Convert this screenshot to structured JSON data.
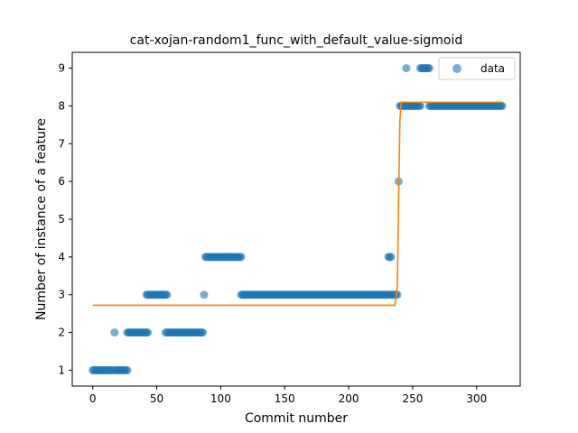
{
  "chart_data": {
    "type": "scatter",
    "title": "cat-xojan-random1_func_with_default_value-sigmoid",
    "xlabel": "Commit number",
    "ylabel": "Number of instance of a feature",
    "xlim": [
      -16,
      334
    ],
    "ylim": [
      0.58,
      9.42
    ],
    "x_ticks": [
      0,
      50,
      100,
      150,
      200,
      250,
      300
    ],
    "y_ticks": [
      1,
      2,
      3,
      4,
      5,
      6,
      7,
      8,
      9
    ],
    "grid": false,
    "legend": {
      "position": "top-right",
      "entries": [
        "data"
      ]
    },
    "colors": {
      "data": "#1f77b4",
      "fit": "#ff7f0e"
    },
    "series": [
      {
        "name": "data",
        "kind": "scatter",
        "segments": [
          {
            "x_start": 0,
            "x_end": 16,
            "y": 1
          },
          {
            "x": 17,
            "y": 2
          },
          {
            "x_start": 18,
            "x_end": 27,
            "y": 1
          },
          {
            "x_start": 27,
            "x_end": 43,
            "y": 2
          },
          {
            "x_start": 42,
            "x_end": 58,
            "y": 3
          },
          {
            "x_start": 57,
            "x_end": 86,
            "y": 2
          },
          {
            "x": 87,
            "y": 3
          },
          {
            "x_start": 88,
            "x_end": 116,
            "y": 4
          },
          {
            "x_start": 116,
            "x_end": 232,
            "y": 3
          },
          {
            "x_start": 231,
            "x_end": 233,
            "y": 4
          },
          {
            "x_start": 233,
            "x_end": 238,
            "y": 3
          },
          {
            "x": 239,
            "y": 6
          },
          {
            "x_start": 240,
            "x_end": 256,
            "y": 8
          },
          {
            "x": 245,
            "y": 9
          },
          {
            "x_start": 256,
            "x_end": 263,
            "y": 9
          },
          {
            "x_start": 263,
            "x_end": 320,
            "y": 8
          }
        ]
      },
      {
        "kind": "line",
        "points": [
          [
            0,
            2.72
          ],
          [
            236,
            2.72
          ],
          [
            238,
            3.2
          ],
          [
            239,
            5.5
          ],
          [
            240,
            7.6
          ],
          [
            241,
            8.1
          ],
          [
            320,
            8.1
          ]
        ]
      }
    ]
  }
}
